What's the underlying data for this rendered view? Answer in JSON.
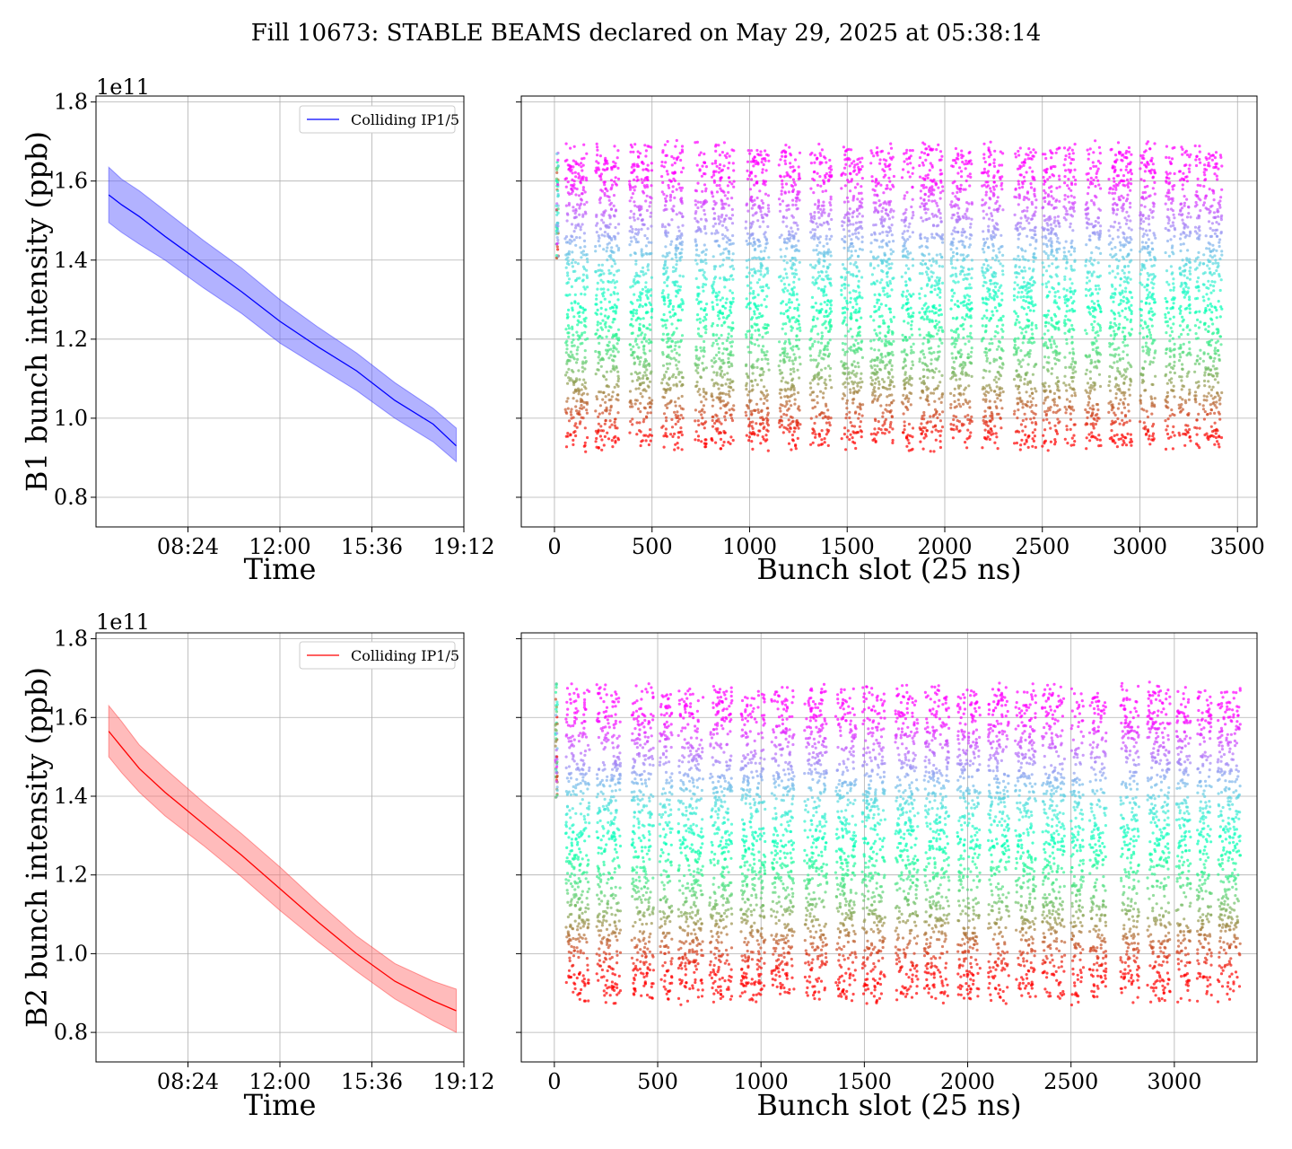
{
  "figure": {
    "title": "Fill 10673: STABLE BEAMS declared on May 29, 2025 at 05:38:14"
  },
  "chart_data": [
    {
      "id": "b1_time",
      "type": "line",
      "xlabel": "Time",
      "ylabel": "B1 bunch intensity (ppb)",
      "y_offset_label": "1e11",
      "x_ticks": [
        "08:24",
        "12:00",
        "15:36",
        "19:12"
      ],
      "x_tick_hours": [
        8.4,
        12.0,
        15.6,
        19.2
      ],
      "xlim_hours": [
        4.8,
        19.2
      ],
      "y_ticks": [
        "0.8",
        "1.0",
        "1.2",
        "1.4",
        "1.6",
        "1.8"
      ],
      "y_tick_values": [
        0.8,
        1.0,
        1.2,
        1.4,
        1.6,
        1.8
      ],
      "ylim": [
        0.725,
        1.815
      ],
      "grid": true,
      "legend": {
        "entries": [
          "Colliding IP1/5"
        ],
        "placement": "top-right"
      },
      "color": "#0000ff",
      "band_color": "#6666ff",
      "series": [
        {
          "name": "Colliding IP1/5",
          "x_hours": [
            5.3,
            5.8,
            6.5,
            7.5,
            9.0,
            10.5,
            12.0,
            13.5,
            15.0,
            16.5,
            18.0,
            18.9
          ],
          "values": [
            1.565,
            1.54,
            1.51,
            1.46,
            1.39,
            1.32,
            1.245,
            1.18,
            1.12,
            1.045,
            0.985,
            0.93
          ],
          "band_upper": [
            1.635,
            1.605,
            1.575,
            1.525,
            1.45,
            1.38,
            1.3,
            1.23,
            1.165,
            1.09,
            1.025,
            0.975
          ],
          "band_lower": [
            1.495,
            1.47,
            1.44,
            1.4,
            1.33,
            1.265,
            1.19,
            1.13,
            1.07,
            1.0,
            0.94,
            0.89
          ]
        }
      ]
    },
    {
      "id": "b1_slot",
      "type": "scatter",
      "xlabel": "Bunch slot (25 ns)",
      "ylabel": "",
      "x_ticks": [
        "0",
        "500",
        "1000",
        "1500",
        "2000",
        "2500",
        "3000",
        "3500"
      ],
      "x_tick_values": [
        0,
        500,
        1000,
        1500,
        2000,
        2500,
        3000,
        3500
      ],
      "xlim": [
        -170,
        3600
      ],
      "ylim": [
        0.725,
        1.815
      ],
      "grid": true,
      "colormap": "rainbow",
      "trains_slot": [
        [
          10,
          20
        ],
        [
          55,
          170
        ],
        [
          210,
          330
        ],
        [
          385,
          500
        ],
        [
          550,
          660
        ],
        [
          720,
          780
        ],
        [
          805,
          920
        ],
        [
          980,
          1100
        ],
        [
          1150,
          1260
        ],
        [
          1310,
          1420
        ],
        [
          1470,
          1580
        ],
        [
          1620,
          1740
        ],
        [
          1780,
          1840
        ],
        [
          1870,
          1990
        ],
        [
          2030,
          2140
        ],
        [
          2190,
          2300
        ],
        [
          2355,
          2470
        ],
        [
          2500,
          2590
        ],
        [
          2610,
          2670
        ],
        [
          2720,
          2800
        ],
        [
          2840,
          2960
        ],
        [
          3000,
          3080
        ],
        [
          3130,
          3180
        ],
        [
          3200,
          3260
        ],
        [
          3280,
          3310
        ],
        [
          3325,
          3420
        ]
      ],
      "y_range": [
        0.82,
        1.76
      ]
    },
    {
      "id": "b2_time",
      "type": "line",
      "xlabel": "Time",
      "ylabel": "B2 bunch intensity (ppb)",
      "y_offset_label": "1e11",
      "x_ticks": [
        "08:24",
        "12:00",
        "15:36",
        "19:12"
      ],
      "x_tick_hours": [
        8.4,
        12.0,
        15.6,
        19.2
      ],
      "xlim_hours": [
        4.8,
        19.2
      ],
      "y_ticks": [
        "0.8",
        "1.0",
        "1.2",
        "1.4",
        "1.6",
        "1.8"
      ],
      "y_tick_values": [
        0.8,
        1.0,
        1.2,
        1.4,
        1.6,
        1.8
      ],
      "ylim": [
        0.725,
        1.815
      ],
      "grid": true,
      "legend": {
        "entries": [
          "Colliding IP1/5"
        ],
        "placement": "top-right"
      },
      "color": "#ff0000",
      "band_color": "#ff7777",
      "series": [
        {
          "name": "Colliding IP1/5",
          "x_hours": [
            5.3,
            5.8,
            6.5,
            7.5,
            9.0,
            10.5,
            12.0,
            13.5,
            15.0,
            16.5,
            18.0,
            18.9
          ],
          "values": [
            1.565,
            1.525,
            1.47,
            1.41,
            1.33,
            1.25,
            1.165,
            1.08,
            1.0,
            0.93,
            0.88,
            0.855
          ],
          "band_upper": [
            1.63,
            1.59,
            1.53,
            1.47,
            1.385,
            1.305,
            1.22,
            1.13,
            1.045,
            0.975,
            0.93,
            0.91
          ],
          "band_lower": [
            1.5,
            1.46,
            1.41,
            1.35,
            1.275,
            1.195,
            1.11,
            1.03,
            0.955,
            0.885,
            0.83,
            0.8
          ]
        }
      ]
    },
    {
      "id": "b2_slot",
      "type": "scatter",
      "xlabel": "Bunch slot (25 ns)",
      "ylabel": "",
      "x_ticks": [
        "0",
        "500",
        "1000",
        "1500",
        "2000",
        "2500",
        "3000"
      ],
      "x_tick_values": [
        0,
        500,
        1000,
        1500,
        2000,
        2500,
        3000
      ],
      "xlim": [
        -160,
        3400
      ],
      "ylim": [
        0.725,
        1.815
      ],
      "grid": true,
      "colormap": "rainbow",
      "trains_slot": [
        [
          5,
          15
        ],
        [
          55,
          170
        ],
        [
          205,
          320
        ],
        [
          375,
          480
        ],
        [
          510,
          570
        ],
        [
          600,
          720
        ],
        [
          750,
          860
        ],
        [
          900,
          1020
        ],
        [
          1050,
          1160
        ],
        [
          1210,
          1320
        ],
        [
          1360,
          1460
        ],
        [
          1490,
          1600
        ],
        [
          1650,
          1760
        ],
        [
          1790,
          1910
        ],
        [
          1950,
          2060
        ],
        [
          2100,
          2200
        ],
        [
          2230,
          2330
        ],
        [
          2360,
          2470
        ],
        [
          2500,
          2560
        ],
        [
          2590,
          2670
        ],
        [
          2740,
          2830
        ],
        [
          2870,
          2980
        ],
        [
          3010,
          3080
        ],
        [
          3110,
          3180
        ],
        [
          3210,
          3320
        ]
      ],
      "y_range": [
        0.77,
        1.75
      ]
    }
  ]
}
